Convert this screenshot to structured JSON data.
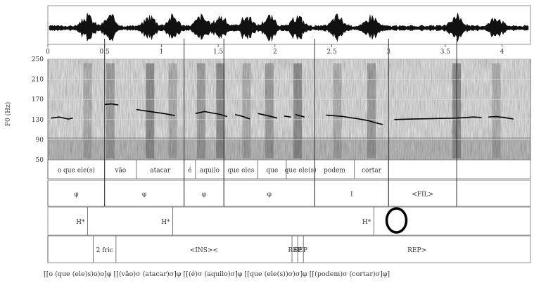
{
  "figure": {
    "y_axis_label": "F0 (Hz)",
    "time_ticks": [
      {
        "t": 0,
        "label": "0"
      },
      {
        "t": 0.5,
        "label": "0.5"
      },
      {
        "t": 1,
        "label": "1"
      },
      {
        "t": 1.5,
        "label": "1.5"
      },
      {
        "t": 2,
        "label": "2"
      },
      {
        "t": 2.5,
        "label": "2.5"
      },
      {
        "t": 3,
        "label": "3"
      },
      {
        "t": 3.5,
        "label": "3.5"
      },
      {
        "t": 4,
        "label": "4"
      }
    ],
    "time_range": [
      0,
      4.25
    ],
    "f0_ticks": [
      {
        "v": 50,
        "label": "50"
      },
      {
        "v": 90,
        "label": "90"
      },
      {
        "v": 130,
        "label": "130"
      },
      {
        "v": 170,
        "label": "170"
      },
      {
        "v": 210,
        "label": "210"
      },
      {
        "v": 250,
        "label": "250"
      }
    ],
    "f0_range": [
      50,
      250
    ],
    "f0_contour": [
      [
        [
          0.03,
          133
        ],
        [
          0.1,
          135
        ],
        [
          0.18,
          131
        ],
        [
          0.22,
          133
        ]
      ],
      [
        [
          0.5,
          160
        ],
        [
          0.56,
          161
        ],
        [
          0.62,
          159
        ]
      ],
      [
        [
          0.78,
          150
        ],
        [
          0.9,
          146
        ],
        [
          1.02,
          142
        ],
        [
          1.12,
          138
        ]
      ],
      [
        [
          1.3,
          142
        ],
        [
          1.38,
          146
        ],
        [
          1.45,
          143
        ],
        [
          1.52,
          140
        ],
        [
          1.58,
          136
        ]
      ],
      [
        [
          1.65,
          140
        ],
        [
          1.72,
          136
        ],
        [
          1.78,
          131
        ]
      ],
      [
        [
          1.85,
          142
        ],
        [
          1.95,
          137
        ],
        [
          2.02,
          133
        ]
      ],
      [
        [
          2.08,
          137
        ],
        [
          2.14,
          135
        ]
      ],
      [
        [
          2.18,
          140
        ],
        [
          2.26,
          135
        ]
      ],
      [
        [
          2.45,
          139
        ],
        [
          2.6,
          136
        ],
        [
          2.72,
          132
        ],
        [
          2.82,
          128
        ],
        [
          2.88,
          124
        ],
        [
          2.95,
          120
        ]
      ],
      [
        [
          3.05,
          130
        ],
        [
          3.2,
          131
        ],
        [
          3.4,
          132
        ],
        [
          3.6,
          133
        ],
        [
          3.75,
          135
        ],
        [
          3.82,
          134
        ]
      ],
      [
        [
          3.88,
          135
        ],
        [
          3.95,
          136
        ],
        [
          4.02,
          134
        ],
        [
          4.1,
          131
        ]
      ]
    ],
    "tiers": {
      "words": [
        {
          "start": 0.0,
          "end": 0.5,
          "text": "o que ele(s)"
        },
        {
          "start": 0.5,
          "end": 0.78,
          "text": "vão"
        },
        {
          "start": 0.78,
          "end": 1.2,
          "text": "atacar"
        },
        {
          "start": 1.2,
          "end": 1.3,
          "text": "é"
        },
        {
          "start": 1.3,
          "end": 1.55,
          "text": "aquilo"
        },
        {
          "start": 1.55,
          "end": 1.85,
          "text": "que eles"
        },
        {
          "start": 1.85,
          "end": 2.1,
          "text": "que"
        },
        {
          "start": 2.1,
          "end": 2.35,
          "text": "que ele(s)"
        },
        {
          "start": 2.35,
          "end": 2.7,
          "text": "podem"
        },
        {
          "start": 2.7,
          "end": 3.0,
          "text": "cortar"
        },
        {
          "start": 3.0,
          "end": 4.25,
          "text": ""
        }
      ],
      "phrases": [
        {
          "start": 0.0,
          "end": 0.5,
          "text": "φ"
        },
        {
          "start": 0.5,
          "end": 1.2,
          "text": "φ"
        },
        {
          "start": 1.2,
          "end": 1.55,
          "text": "φ"
        },
        {
          "start": 1.55,
          "end": 2.35,
          "text": "φ"
        },
        {
          "start": 2.35,
          "end": 3.0,
          "text": "I"
        },
        {
          "start": 3.0,
          "end": 3.6,
          "text": "<FIL>"
        },
        {
          "start": 3.6,
          "end": 4.25,
          "text": ""
        }
      ],
      "tones": [
        {
          "t": 0.35,
          "label": "H*"
        },
        {
          "t": 1.1,
          "label": "H*"
        },
        {
          "t": 2.87,
          "label": "H*"
        }
      ],
      "events": [
        {
          "start": 0.0,
          "end": 0.4,
          "text": ""
        },
        {
          "start": 0.4,
          "end": 0.6,
          "text": "2 fric"
        },
        {
          "start": 0.6,
          "end": 2.15,
          "text": "<INS><"
        },
        {
          "start": 2.15,
          "end": 2.2,
          "text": "REP"
        },
        {
          "start": 2.2,
          "end": 2.25,
          "text": "REP"
        },
        {
          "start": 2.25,
          "end": 4.25,
          "text": "REP>"
        }
      ]
    },
    "circle_marker_t": 3.07,
    "bottom_line": "[[o (que (ele)s)o)o]φ [[(vão)σ (atacar)σ]φ [[(é)σ (aquilo)σ]φ [[que (ele(s))σ)σ]φ [[(podem)σ (cortar)σ]φ]"
  }
}
